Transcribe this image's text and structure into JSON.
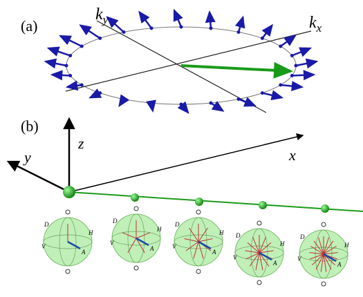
{
  "panel_a": {
    "label": "(a)",
    "ky": {
      "base": "k",
      "sub": "y"
    },
    "kx": {
      "base": "k",
      "sub": "x"
    }
  },
  "panel_b": {
    "label": "(b)",
    "axes": {
      "x": "x",
      "y": "y",
      "z": "z"
    },
    "spheres": [
      {
        "d": "D",
        "h": "H",
        "v": "V",
        "a": "A"
      },
      {
        "d": "D",
        "h": "H",
        "v": "V",
        "a": "A"
      },
      {
        "d": "D",
        "h": "H",
        "v": "V",
        "a": "A"
      },
      {
        "d": "D",
        "h": "H",
        "v": "V",
        "a": "A"
      },
      {
        "d": "D",
        "h": "H",
        "v": "V",
        "a": "A"
      }
    ]
  }
}
